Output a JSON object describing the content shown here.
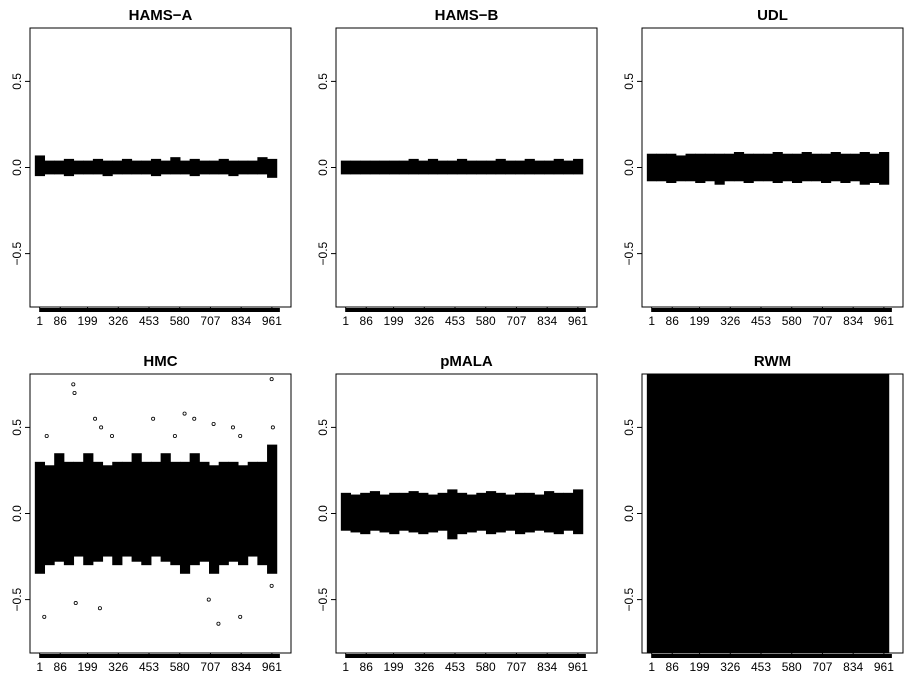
{
  "chart_data": [
    {
      "type": "band",
      "title": "HAMS−A",
      "color": "#000000",
      "x": [
        1,
        41,
        81,
        121,
        161,
        201,
        241,
        281,
        321,
        361,
        401,
        441,
        481,
        521,
        561,
        601,
        641,
        681,
        721,
        761,
        801,
        841,
        881,
        921,
        961
      ],
      "lower": [
        -0.05,
        -0.04,
        -0.04,
        -0.05,
        -0.04,
        -0.04,
        -0.04,
        -0.05,
        -0.04,
        -0.04,
        -0.04,
        -0.04,
        -0.05,
        -0.04,
        -0.04,
        -0.04,
        -0.05,
        -0.04,
        -0.04,
        -0.04,
        -0.05,
        -0.04,
        -0.04,
        -0.04,
        -0.06
      ],
      "upper": [
        0.07,
        0.04,
        0.04,
        0.05,
        0.04,
        0.04,
        0.05,
        0.04,
        0.04,
        0.05,
        0.04,
        0.04,
        0.05,
        0.04,
        0.06,
        0.04,
        0.05,
        0.04,
        0.04,
        0.05,
        0.04,
        0.04,
        0.04,
        0.06,
        0.05
      ],
      "xlim": [
        -39,
        1040
      ],
      "ylim": [
        -0.81,
        0.81
      ],
      "xticks": [
        1,
        86,
        199,
        326,
        453,
        580,
        707,
        834,
        961
      ],
      "yticks": [
        {
          "value": -0.5,
          "label": "−0.5"
        },
        {
          "value": 0,
          "label": "0.0"
        },
        0.5
      ]
    },
    {
      "type": "band",
      "title": "HAMS−B",
      "color": "#000000",
      "x": [
        1,
        41,
        81,
        121,
        161,
        201,
        241,
        281,
        321,
        361,
        401,
        441,
        481,
        521,
        561,
        601,
        641,
        681,
        721,
        761,
        801,
        841,
        881,
        921,
        961
      ],
      "lower": [
        -0.04,
        -0.04,
        -0.04,
        -0.04,
        -0.04,
        -0.04,
        -0.04,
        -0.04,
        -0.04,
        -0.04,
        -0.04,
        -0.04,
        -0.04,
        -0.04,
        -0.04,
        -0.04,
        -0.04,
        -0.04,
        -0.04,
        -0.04,
        -0.04,
        -0.04,
        -0.04,
        -0.04,
        -0.04
      ],
      "upper": [
        0.04,
        0.04,
        0.04,
        0.04,
        0.04,
        0.04,
        0.04,
        0.05,
        0.04,
        0.05,
        0.04,
        0.04,
        0.05,
        0.04,
        0.04,
        0.04,
        0.05,
        0.04,
        0.04,
        0.05,
        0.04,
        0.04,
        0.05,
        0.04,
        0.05
      ],
      "xlim": [
        -39,
        1040
      ],
      "ylim": [
        -0.81,
        0.81
      ],
      "xticks": [
        1,
        86,
        199,
        326,
        453,
        580,
        707,
        834,
        961
      ],
      "yticks": [
        {
          "value": -0.5,
          "label": "−0.5"
        },
        {
          "value": 0,
          "label": "0.0"
        },
        0.5
      ]
    },
    {
      "type": "band",
      "title": "UDL",
      "color": "#000000",
      "x": [
        1,
        41,
        81,
        121,
        161,
        201,
        241,
        281,
        321,
        361,
        401,
        441,
        481,
        521,
        561,
        601,
        641,
        681,
        721,
        761,
        801,
        841,
        881,
        921,
        961
      ],
      "lower": [
        -0.08,
        -0.08,
        -0.09,
        -0.08,
        -0.08,
        -0.09,
        -0.08,
        -0.1,
        -0.08,
        -0.08,
        -0.09,
        -0.08,
        -0.08,
        -0.09,
        -0.08,
        -0.09,
        -0.08,
        -0.08,
        -0.09,
        -0.08,
        -0.09,
        -0.08,
        -0.1,
        -0.09,
        -0.1
      ],
      "upper": [
        0.08,
        0.08,
        0.08,
        0.07,
        0.08,
        0.08,
        0.08,
        0.08,
        0.08,
        0.09,
        0.08,
        0.08,
        0.08,
        0.09,
        0.08,
        0.08,
        0.09,
        0.08,
        0.08,
        0.09,
        0.08,
        0.08,
        0.09,
        0.08,
        0.09
      ],
      "xlim": [
        -39,
        1040
      ],
      "ylim": [
        -0.81,
        0.81
      ],
      "xticks": [
        1,
        86,
        199,
        326,
        453,
        580,
        707,
        834,
        961
      ],
      "yticks": [
        {
          "value": -0.5,
          "label": "−0.5"
        },
        {
          "value": 0,
          "label": "0.0"
        },
        0.5
      ]
    },
    {
      "type": "band",
      "title": "HMC",
      "color": "#000000",
      "x": [
        1,
        41,
        81,
        121,
        161,
        201,
        241,
        281,
        321,
        361,
        401,
        441,
        481,
        521,
        561,
        601,
        641,
        681,
        721,
        761,
        801,
        841,
        881,
        921,
        961
      ],
      "lower": [
        -0.35,
        -0.3,
        -0.28,
        -0.3,
        -0.25,
        -0.3,
        -0.28,
        -0.25,
        -0.3,
        -0.25,
        -0.28,
        -0.3,
        -0.25,
        -0.28,
        -0.3,
        -0.35,
        -0.3,
        -0.28,
        -0.35,
        -0.3,
        -0.28,
        -0.3,
        -0.25,
        -0.3,
        -0.35
      ],
      "upper": [
        0.3,
        0.28,
        0.35,
        0.3,
        0.3,
        0.35,
        0.3,
        0.28,
        0.3,
        0.3,
        0.35,
        0.3,
        0.3,
        0.35,
        0.3,
        0.3,
        0.35,
        0.3,
        0.28,
        0.3,
        0.3,
        0.28,
        0.3,
        0.3,
        0.4
      ],
      "points_x": [
        30,
        140,
        145,
        230,
        255,
        300,
        470,
        560,
        600,
        640,
        720,
        800,
        830,
        960,
        965,
        20,
        150,
        250,
        700,
        740,
        830,
        960
      ],
      "points_y": [
        0.45,
        0.75,
        0.7,
        0.55,
        0.5,
        0.45,
        0.55,
        0.45,
        0.58,
        0.55,
        0.52,
        0.5,
        0.45,
        0.78,
        0.5,
        -0.6,
        -0.52,
        -0.55,
        -0.5,
        -0.64,
        -0.6,
        -0.42
      ],
      "xlim": [
        -39,
        1040
      ],
      "ylim": [
        -0.81,
        0.81
      ],
      "xticks": [
        1,
        86,
        199,
        326,
        453,
        580,
        707,
        834,
        961
      ],
      "yticks": [
        {
          "value": -0.5,
          "label": "−0.5"
        },
        {
          "value": 0,
          "label": "0.0"
        },
        0.5
      ]
    },
    {
      "type": "band",
      "title": "pMALA",
      "color": "#000000",
      "x": [
        1,
        41,
        81,
        121,
        161,
        201,
        241,
        281,
        321,
        361,
        401,
        441,
        481,
        521,
        561,
        601,
        641,
        681,
        721,
        761,
        801,
        841,
        881,
        921,
        961
      ],
      "lower": [
        -0.1,
        -0.11,
        -0.12,
        -0.1,
        -0.11,
        -0.12,
        -0.1,
        -0.11,
        -0.12,
        -0.11,
        -0.1,
        -0.15,
        -0.12,
        -0.11,
        -0.1,
        -0.12,
        -0.11,
        -0.1,
        -0.12,
        -0.11,
        -0.1,
        -0.11,
        -0.12,
        -0.1,
        -0.12
      ],
      "upper": [
        0.12,
        0.11,
        0.12,
        0.13,
        0.11,
        0.12,
        0.12,
        0.13,
        0.12,
        0.11,
        0.12,
        0.14,
        0.12,
        0.11,
        0.12,
        0.13,
        0.12,
        0.11,
        0.12,
        0.12,
        0.11,
        0.13,
        0.12,
        0.12,
        0.14
      ],
      "xlim": [
        -39,
        1040
      ],
      "ylim": [
        -0.81,
        0.81
      ],
      "xticks": [
        1,
        86,
        199,
        326,
        453,
        580,
        707,
        834,
        961
      ],
      "yticks": [
        {
          "value": -0.5,
          "label": "−0.5"
        },
        {
          "value": 0,
          "label": "0.0"
        },
        0.5
      ]
    },
    {
      "type": "band",
      "title": "RWM",
      "color": "#000000",
      "x": [
        1,
        41,
        81,
        121,
        161,
        201,
        241,
        281,
        321,
        361,
        401,
        441,
        481,
        521,
        561,
        601,
        641,
        681,
        721,
        761,
        801,
        841,
        881,
        921,
        961
      ],
      "lower": [
        -0.81,
        -0.81,
        -0.81,
        -0.81,
        -0.81,
        -0.81,
        -0.81,
        -0.81,
        -0.81,
        -0.81,
        -0.81,
        -0.81,
        -0.81,
        -0.81,
        -0.81,
        -0.81,
        -0.81,
        -0.81,
        -0.81,
        -0.81,
        -0.81,
        -0.81,
        -0.81,
        -0.81,
        -0.81
      ],
      "upper": [
        0.81,
        0.81,
        0.81,
        0.81,
        0.81,
        0.81,
        0.81,
        0.81,
        0.81,
        0.81,
        0.81,
        0.81,
        0.81,
        0.81,
        0.81,
        0.81,
        0.81,
        0.81,
        0.81,
        0.81,
        0.81,
        0.81,
        0.81,
        0.81,
        0.81
      ],
      "xlim": [
        -39,
        1040
      ],
      "ylim": [
        -0.81,
        0.81
      ],
      "xticks": [
        1,
        86,
        199,
        326,
        453,
        580,
        707,
        834,
        961
      ],
      "yticks": [
        {
          "value": -0.5,
          "label": "−0.5"
        },
        {
          "value": 0,
          "label": "0.0"
        },
        0.5
      ]
    }
  ]
}
